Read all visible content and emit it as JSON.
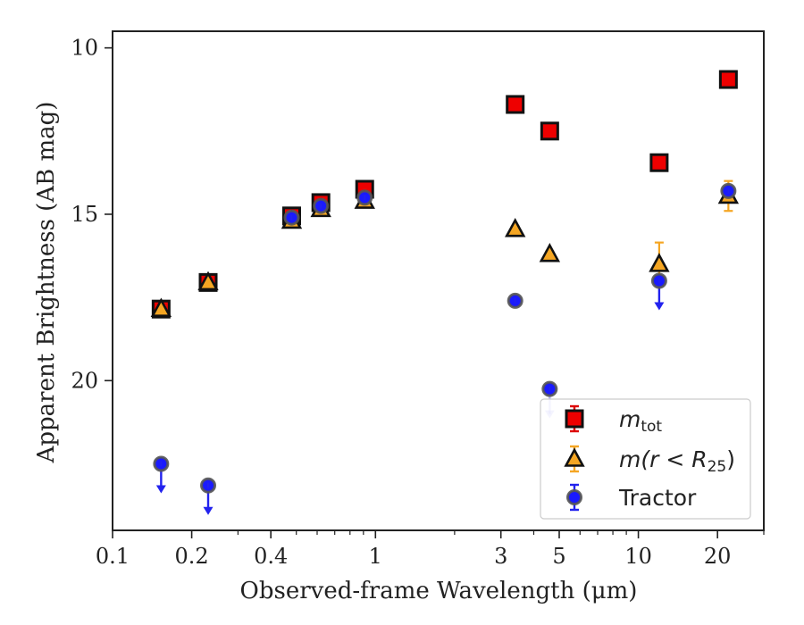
{
  "chart_data": {
    "type": "scatter",
    "title": "",
    "xlabel": "Observed-frame Wavelength (μm)",
    "ylabel": "Apparent Brightness (AB mag)",
    "xscale": "log",
    "xlim": [
      0.1,
      30
    ],
    "ylim": [
      24.5,
      9.5
    ],
    "y_inverted": true,
    "grid": false,
    "xticks": [
      {
        "value": 0.1,
        "label": "0.1"
      },
      {
        "value": 0.2,
        "label": "0.2"
      },
      {
        "value": 0.4,
        "label": "0.4"
      },
      {
        "value": 1,
        "label": "1"
      },
      {
        "value": 3,
        "label": "3"
      },
      {
        "value": 5,
        "label": "5"
      },
      {
        "value": 10,
        "label": "10"
      },
      {
        "value": 20,
        "label": "20"
      }
    ],
    "yticks": [
      {
        "value": 10,
        "label": "10"
      },
      {
        "value": 15,
        "label": "15"
      },
      {
        "value": 20,
        "label": "20"
      }
    ],
    "legend": {
      "placement": "lower right"
    },
    "series": [
      {
        "name": "m_tot",
        "label_main": "m",
        "label_sub": "tot",
        "marker": "square",
        "face_color": "#ee0000",
        "edge_color": "#111111",
        "err_color": "#dd0000",
        "points": [
          {
            "x": 0.153,
            "y": 17.85,
            "err": 0.1
          },
          {
            "x": 0.231,
            "y": 17.05,
            "err": 0.1
          },
          {
            "x": 0.48,
            "y": 15.05,
            "err": 0.1
          },
          {
            "x": 0.62,
            "y": 14.65,
            "err": 0.1
          },
          {
            "x": 0.91,
            "y": 14.25,
            "err": 0.1
          },
          {
            "x": 3.4,
            "y": 11.7,
            "err": 0.05
          },
          {
            "x": 4.6,
            "y": 12.5,
            "err": 0.05
          },
          {
            "x": 12.0,
            "y": 13.45,
            "err": 0.05
          },
          {
            "x": 22.0,
            "y": 10.95,
            "err": 0.05
          }
        ]
      },
      {
        "name": "m(r<R25)",
        "label_text": "m(r < R",
        "label_sub": "25",
        "label_close": ")",
        "marker": "triangle",
        "face_color": "#f5a623",
        "edge_color": "#111111",
        "err_color": "#f5a623",
        "points": [
          {
            "x": 0.153,
            "y": 17.85,
            "err": 0.05
          },
          {
            "x": 0.231,
            "y": 17.05,
            "err": 0.05
          },
          {
            "x": 0.48,
            "y": 15.2,
            "err": 0.05
          },
          {
            "x": 0.62,
            "y": 14.85,
            "err": 0.05
          },
          {
            "x": 0.91,
            "y": 14.6,
            "err": 0.05
          },
          {
            "x": 3.4,
            "y": 15.45,
            "err": 0.05
          },
          {
            "x": 4.6,
            "y": 16.2,
            "err": 0.05
          },
          {
            "x": 12.0,
            "y": 16.5,
            "err": 0.65
          },
          {
            "x": 22.0,
            "y": 14.45,
            "err": 0.45
          }
        ]
      },
      {
        "name": "Tractor",
        "marker": "circle",
        "face_color": "#1a1aff",
        "edge_color": "#555555",
        "err_color": "#2222ee",
        "points": [
          {
            "x": 0.153,
            "y": 22.5,
            "upper_limit": true
          },
          {
            "x": 0.231,
            "y": 23.15,
            "upper_limit": true
          },
          {
            "x": 0.48,
            "y": 15.1,
            "upper_limit": false
          },
          {
            "x": 0.62,
            "y": 14.75,
            "upper_limit": false
          },
          {
            "x": 0.91,
            "y": 14.5,
            "upper_limit": false
          },
          {
            "x": 3.4,
            "y": 17.6,
            "upper_limit": false
          },
          {
            "x": 4.6,
            "y": 20.25,
            "upper_limit": true,
            "arrow_faded": true
          },
          {
            "x": 12.0,
            "y": 17.0,
            "upper_limit": true
          },
          {
            "x": 22.0,
            "y": 14.3,
            "upper_limit": false
          }
        ]
      }
    ]
  }
}
